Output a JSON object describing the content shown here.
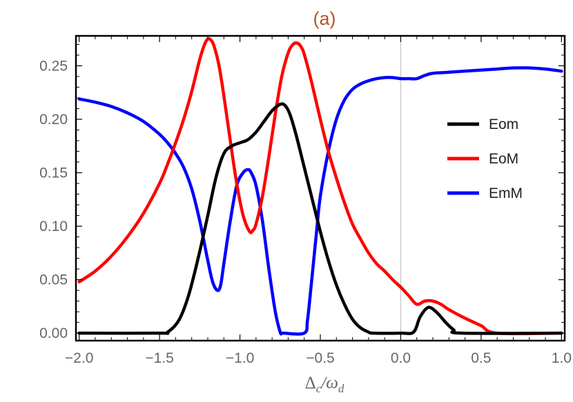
{
  "chart_data": {
    "type": "line",
    "title": "(a)",
    "xlabel": {
      "main": "Δ",
      "sub1": "c",
      "sep": "/ω",
      "sub2": "d"
    },
    "ylabel": "",
    "xlim": [
      -2.02,
      1.02
    ],
    "ylim": [
      -0.007,
      0.278
    ],
    "xticks": [
      -2.0,
      -1.5,
      -1.0,
      -0.5,
      0.0,
      0.5,
      1.0
    ],
    "xtick_labels": [
      "−2.0",
      "−1.5",
      "−1.0",
      "−0.5",
      "0.0",
      "0.5",
      "1.0"
    ],
    "yticks": [
      0.0,
      0.05,
      0.1,
      0.15,
      0.2,
      0.25
    ],
    "ytick_labels": [
      "0.00",
      "0.05",
      "0.10",
      "0.15",
      "0.20",
      "0.25"
    ],
    "grid": false,
    "reference_line_x": 0.0,
    "legend_position": "right",
    "series": [
      {
        "name": "Eom",
        "color": "#000000",
        "x": [
          -2.0,
          -1.5,
          -1.45,
          -1.38,
          -1.32,
          -1.26,
          -1.2,
          -1.15,
          -1.1,
          -1.05,
          -1.0,
          -0.95,
          -0.9,
          -0.85,
          -0.8,
          -0.75,
          -0.72,
          -0.69,
          -0.65,
          -0.6,
          -0.55,
          -0.5,
          -0.45,
          -0.4,
          -0.35,
          -0.3,
          -0.25,
          -0.2,
          -0.17,
          0.0,
          0.08,
          0.12,
          0.17,
          0.22,
          0.28,
          0.33,
          0.38,
          1.0
        ],
        "y": [
          0.0,
          0.0,
          0.001,
          0.012,
          0.035,
          0.07,
          0.11,
          0.145,
          0.168,
          0.175,
          0.178,
          0.181,
          0.188,
          0.198,
          0.208,
          0.214,
          0.213,
          0.205,
          0.185,
          0.155,
          0.125,
          0.095,
          0.068,
          0.045,
          0.027,
          0.013,
          0.005,
          0.001,
          0.0,
          0.0,
          0.001,
          0.015,
          0.024,
          0.02,
          0.01,
          0.003,
          0.0,
          0.0
        ]
      },
      {
        "name": "EoM",
        "color": "#ff0000",
        "x": [
          -2.0,
          -1.9,
          -1.8,
          -1.7,
          -1.6,
          -1.5,
          -1.45,
          -1.4,
          -1.35,
          -1.3,
          -1.25,
          -1.22,
          -1.2,
          -1.18,
          -1.16,
          -1.13,
          -1.1,
          -1.06,
          -1.02,
          -0.98,
          -0.94,
          -0.92,
          -0.9,
          -0.86,
          -0.82,
          -0.78,
          -0.74,
          -0.7,
          -0.67,
          -0.64,
          -0.61,
          -0.58,
          -0.55,
          -0.5,
          -0.45,
          -0.4,
          -0.35,
          -0.3,
          -0.25,
          -0.2,
          -0.15,
          -0.1,
          -0.05,
          0.0,
          0.05,
          0.1,
          0.15,
          0.2,
          0.25,
          0.3,
          0.4,
          0.5,
          0.6,
          1.0
        ],
        "y": [
          0.048,
          0.058,
          0.072,
          0.09,
          0.112,
          0.14,
          0.158,
          0.178,
          0.2,
          0.226,
          0.256,
          0.27,
          0.275,
          0.274,
          0.268,
          0.25,
          0.222,
          0.18,
          0.14,
          0.11,
          0.095,
          0.096,
          0.102,
          0.128,
          0.165,
          0.205,
          0.24,
          0.262,
          0.27,
          0.271,
          0.265,
          0.25,
          0.232,
          0.2,
          0.17,
          0.145,
          0.122,
          0.102,
          0.088,
          0.075,
          0.065,
          0.058,
          0.05,
          0.043,
          0.035,
          0.027,
          0.03,
          0.03,
          0.027,
          0.022,
          0.014,
          0.007,
          0.0,
          0.0
        ]
      },
      {
        "name": "EmM",
        "color": "#0000ff",
        "x": [
          -2.0,
          -1.9,
          -1.8,
          -1.7,
          -1.6,
          -1.5,
          -1.45,
          -1.4,
          -1.35,
          -1.3,
          -1.25,
          -1.2,
          -1.17,
          -1.14,
          -1.12,
          -1.1,
          -1.06,
          -1.02,
          -0.98,
          -0.95,
          -0.93,
          -0.9,
          -0.86,
          -0.82,
          -0.78,
          -0.75,
          -0.74,
          -0.73,
          -0.6,
          -0.58,
          -0.56,
          -0.54,
          -0.52,
          -0.5,
          -0.45,
          -0.4,
          -0.35,
          -0.3,
          -0.25,
          -0.2,
          -0.15,
          -0.1,
          -0.05,
          0.0,
          0.05,
          0.1,
          0.15,
          0.2,
          0.3,
          0.4,
          0.5,
          0.6,
          0.7,
          0.8,
          0.9,
          1.0
        ],
        "y": [
          0.219,
          0.216,
          0.212,
          0.206,
          0.198,
          0.186,
          0.178,
          0.168,
          0.155,
          0.135,
          0.105,
          0.068,
          0.048,
          0.04,
          0.045,
          0.065,
          0.105,
          0.138,
          0.15,
          0.153,
          0.15,
          0.138,
          0.105,
          0.06,
          0.02,
          0.001,
          0.0,
          0.0,
          0.0,
          0.012,
          0.04,
          0.07,
          0.1,
          0.128,
          0.17,
          0.2,
          0.218,
          0.228,
          0.233,
          0.236,
          0.238,
          0.239,
          0.239,
          0.238,
          0.238,
          0.238,
          0.241,
          0.243,
          0.244,
          0.245,
          0.246,
          0.247,
          0.248,
          0.248,
          0.247,
          0.245
        ]
      }
    ]
  }
}
